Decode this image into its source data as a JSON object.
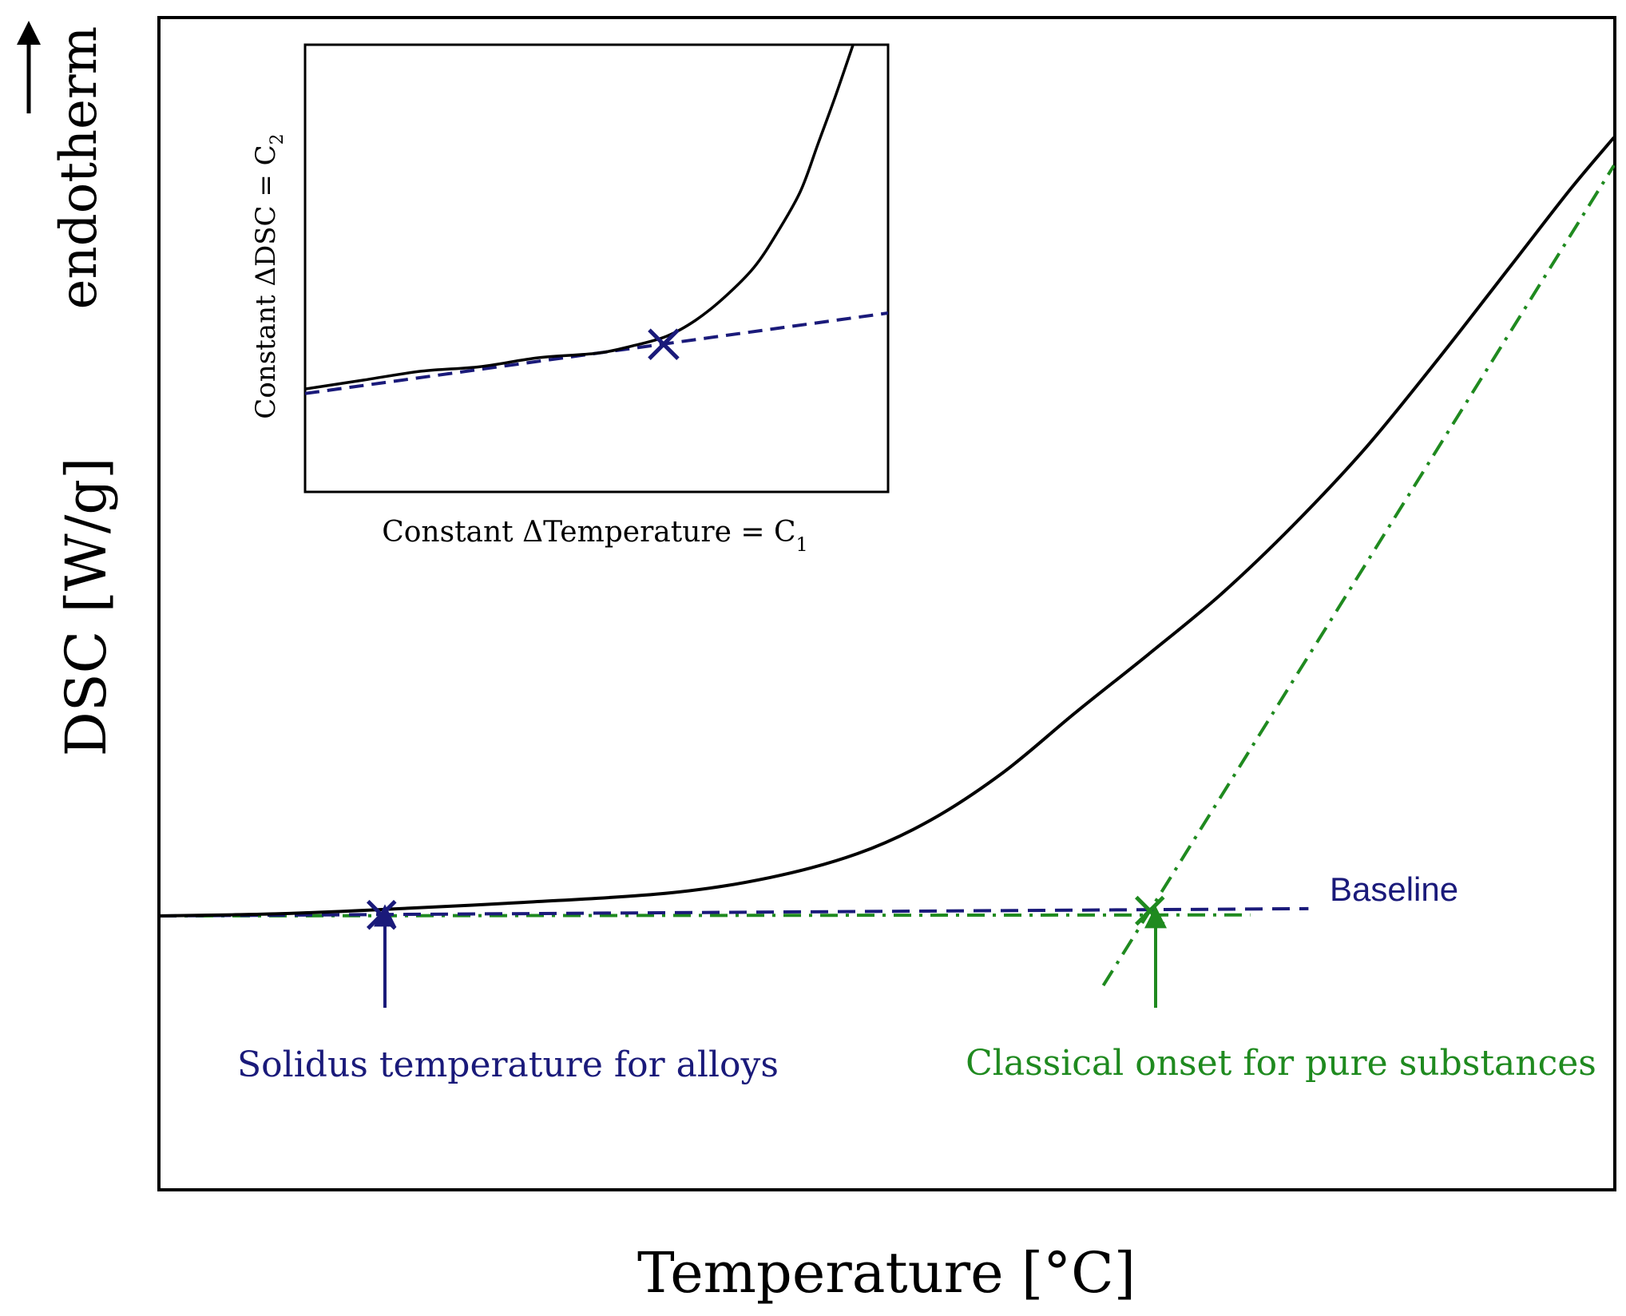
{
  "colors": {
    "curve": "#000000",
    "baseline": "#1a1a7a",
    "tangent": "#1f8a1f",
    "axes": "#000000"
  },
  "chart_data": [
    {
      "type": "line",
      "title": "",
      "xlabel": "Temperature [°C]",
      "ylabel": "DSC [W/g]",
      "ylabel_note": "endotherm",
      "x_ticks": [],
      "y_ticks": [],
      "xlim": [
        0,
        100
      ],
      "ylim": [
        0,
        100
      ],
      "series": [
        {
          "name": "DSC curve",
          "style": "solid",
          "color": "#000000",
          "x": [
            0,
            8,
            15,
            25,
            35,
            42,
            48,
            53,
            58,
            63,
            68,
            73,
            78,
            83,
            88,
            93,
            97,
            100
          ],
          "y": [
            25,
            25.2,
            25.6,
            26.3,
            27.2,
            28.7,
            31.0,
            34.2,
            38.8,
            44.6,
            50.2,
            56.0,
            62.7,
            70.2,
            78.8,
            87.8,
            95.0,
            100
          ]
        },
        {
          "name": "Baseline",
          "style": "dashed",
          "color": "#1a1a7a",
          "x": [
            0,
            79
          ],
          "y": [
            25,
            25.7
          ]
        },
        {
          "name": "Baseline extrapolation",
          "style": "dash-dot",
          "color": "#1f8a1f",
          "x": [
            0,
            75
          ],
          "y": [
            25,
            25.1
          ]
        },
        {
          "name": "Inflection tangent",
          "style": "dash-dot",
          "color": "#1f8a1f",
          "x": [
            64.9,
            100
          ],
          "y": [
            18.3,
            97.3
          ]
        }
      ],
      "markers": [
        {
          "name": "Solidus temperature for alloys",
          "x": 15.3,
          "y": 25.1,
          "color": "#1a1a7a"
        },
        {
          "name": "Classical onset for pure substances",
          "x": 68.1,
          "y": 25.5,
          "color": "#1f8a1f"
        }
      ],
      "annotations": {
        "baseline_label": "Baseline",
        "solidus_label": "Solidus temperature for alloys",
        "onset_label": "Classical onset for pure substances"
      }
    },
    {
      "type": "line",
      "title": "",
      "xlabel": "Constant ΔTemperature = C",
      "xlabel_subscript": "1",
      "ylabel": "Constant ΔDSC = C",
      "ylabel_subscript": "2",
      "x_ticks": [],
      "y_ticks": [],
      "xlim": [
        0,
        100
      ],
      "ylim": [
        0,
        100
      ],
      "series": [
        {
          "name": "DSC curve (zoom)",
          "style": "solid",
          "color": "#000000",
          "x": [
            0,
            10,
            20,
            30,
            40,
            50,
            56,
            62,
            67,
            72,
            77,
            81,
            85,
            88,
            91,
            94
          ],
          "y": [
            23,
            25,
            27,
            28,
            30,
            31,
            32.6,
            34.8,
            38.4,
            43.6,
            50.2,
            58.0,
            67.3,
            77.9,
            88.6,
            100
          ]
        },
        {
          "name": "Baseline (zoom)",
          "style": "dashed",
          "color": "#1a1a7a",
          "x": [
            0,
            100
          ],
          "y": [
            22,
            40
          ]
        }
      ],
      "markers": [
        {
          "name": "Solidus point",
          "x": 61.5,
          "y": 33,
          "color": "#1a1a7a"
        }
      ]
    }
  ]
}
